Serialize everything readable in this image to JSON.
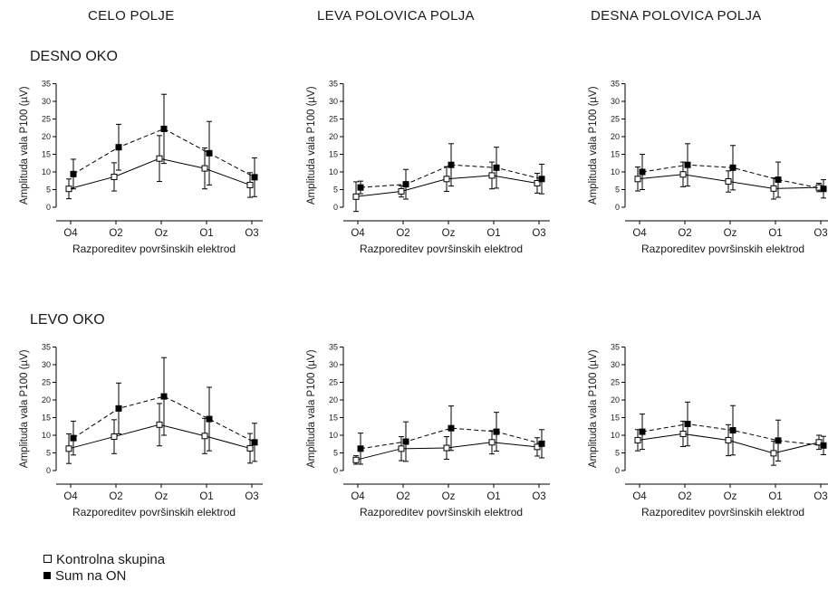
{
  "column_titles": [
    "CELO POLJE",
    "LEVA POLOVICA POLJA",
    "DESNA POLOVICA POLJA"
  ],
  "row_titles": [
    "DESNO OKO",
    "LEVO OKO"
  ],
  "legend": {
    "control_label": "Kontrolna skupina",
    "patient_label": "Sum na ON"
  },
  "chart_data": [
    {
      "type": "line",
      "panel": "DESNO OKO / CELO POLJE",
      "ylabel": "Amplituda vala P100 (µV)",
      "xlabel": "Razporeditev površinskih elektrod",
      "ylim": [
        0,
        35
      ],
      "yticks": [
        0,
        5,
        10,
        15,
        20,
        25,
        30,
        35
      ],
      "categories": [
        "O4",
        "O2",
        "Oz",
        "O1",
        "O3"
      ],
      "series": [
        {
          "name": "Kontrolna skupina",
          "values": [
            5.2,
            8.6,
            13.8,
            11.0,
            6.3
          ],
          "errors": [
            2.8,
            4.0,
            6.5,
            5.8,
            3.5
          ]
        },
        {
          "name": "Sum na ON",
          "values": [
            9.4,
            17.0,
            22.2,
            15.3,
            8.5
          ],
          "errors": [
            4.2,
            6.5,
            9.8,
            9.0,
            5.5
          ]
        }
      ]
    },
    {
      "type": "line",
      "panel": "DESNO OKO / LEVA POLOVICA POLJA",
      "ylabel": "Amplituda vala P100 (µV)",
      "xlabel": "Razporeditev površinskih elektrod",
      "ylim": [
        0,
        35
      ],
      "yticks": [
        0,
        5,
        10,
        15,
        20,
        25,
        30,
        35
      ],
      "categories": [
        "O4",
        "O2",
        "Oz",
        "O1",
        "O3"
      ],
      "series": [
        {
          "name": "Kontrolna skupina",
          "values": [
            3.0,
            4.5,
            8.0,
            9.0,
            6.8
          ],
          "errors": [
            4.2,
            1.6,
            3.5,
            3.8,
            2.8
          ]
        },
        {
          "name": "Sum na ON",
          "values": [
            5.6,
            6.5,
            12.0,
            11.2,
            8.0
          ],
          "errors": [
            1.8,
            4.2,
            6.0,
            5.8,
            4.2
          ]
        }
      ]
    },
    {
      "type": "line",
      "panel": "DESNO OKO / DESNA POLOVICA POLJA",
      "ylabel": "Amplituda vala P100 (µV)",
      "xlabel": "Razporeditev površinskih elektrod",
      "ylim": [
        0,
        35
      ],
      "yticks": [
        0,
        5,
        10,
        15,
        20,
        25,
        30,
        35
      ],
      "categories": [
        "O4",
        "O2",
        "Oz",
        "O1",
        "O3"
      ],
      "series": [
        {
          "name": "Kontrolna skupina",
          "values": [
            8.0,
            9.3,
            7.3,
            5.3,
            5.6
          ],
          "errors": [
            3.4,
            3.5,
            3.0,
            3.0,
            1.2
          ]
        },
        {
          "name": "Sum na ON",
          "values": [
            10.0,
            12.0,
            11.2,
            7.8,
            5.2
          ],
          "errors": [
            5.0,
            6.0,
            6.3,
            5.0,
            2.6
          ]
        }
      ]
    },
    {
      "type": "line",
      "panel": "LEVO OKO / CELO POLJE",
      "ylabel": "Amplituda vala P100 (µV)",
      "xlabel": "Razporeditev površinskih elektrod",
      "ylim": [
        0,
        35
      ],
      "yticks": [
        0,
        5,
        10,
        15,
        20,
        25,
        30,
        35
      ],
      "categories": [
        "O4",
        "O2",
        "Oz",
        "O1",
        "O3"
      ],
      "series": [
        {
          "name": "Kontrolna skupina",
          "values": [
            6.2,
            9.6,
            13.0,
            9.8,
            6.3
          ],
          "errors": [
            4.2,
            4.8,
            6.0,
            5.0,
            4.2
          ]
        },
        {
          "name": "Sum na ON",
          "values": [
            9.2,
            17.6,
            21.0,
            14.6,
            8.0
          ],
          "errors": [
            4.8,
            7.2,
            11.0,
            9.0,
            5.4
          ]
        }
      ]
    },
    {
      "type": "line",
      "panel": "LEVO OKO / LEVA POLOVICA POLJA",
      "ylabel": "Amplituda vala P100 (µV)",
      "xlabel": "Razporeditev površinskih elektrod",
      "ylim": [
        0,
        35
      ],
      "yticks": [
        0,
        5,
        10,
        15,
        20,
        25,
        30,
        35
      ],
      "categories": [
        "O4",
        "O2",
        "Oz",
        "O1",
        "O3"
      ],
      "series": [
        {
          "name": "Kontrolna skupina",
          "values": [
            3.0,
            6.2,
            6.4,
            8.0,
            6.7
          ],
          "errors": [
            1.2,
            3.4,
            3.2,
            3.3,
            2.6
          ]
        },
        {
          "name": "Sum na ON",
          "values": [
            6.2,
            8.2,
            12.0,
            11.0,
            7.6
          ],
          "errors": [
            4.4,
            5.6,
            6.3,
            5.5,
            4.0
          ]
        }
      ]
    },
    {
      "type": "line",
      "panel": "LEVO OKO / DESNA POLOVICA POLJA",
      "ylabel": "Amplituda vala P100 (µV)",
      "xlabel": "Razporeditev površinskih elektrod",
      "ylim": [
        0,
        35
      ],
      "yticks": [
        0,
        5,
        10,
        15,
        20,
        25,
        30,
        35
      ],
      "categories": [
        "O4",
        "O2",
        "Oz",
        "O1",
        "O3"
      ],
      "series": [
        {
          "name": "Kontrolna skupina",
          "values": [
            8.6,
            10.4,
            8.6,
            4.9,
            8.0
          ],
          "errors": [
            3.0,
            3.6,
            4.4,
            3.4,
            2.0
          ]
        },
        {
          "name": "Sum na ON",
          "values": [
            11.0,
            13.2,
            11.4,
            8.5,
            7.1
          ],
          "errors": [
            5.0,
            6.2,
            7.0,
            5.8,
            2.6
          ]
        }
      ]
    }
  ]
}
